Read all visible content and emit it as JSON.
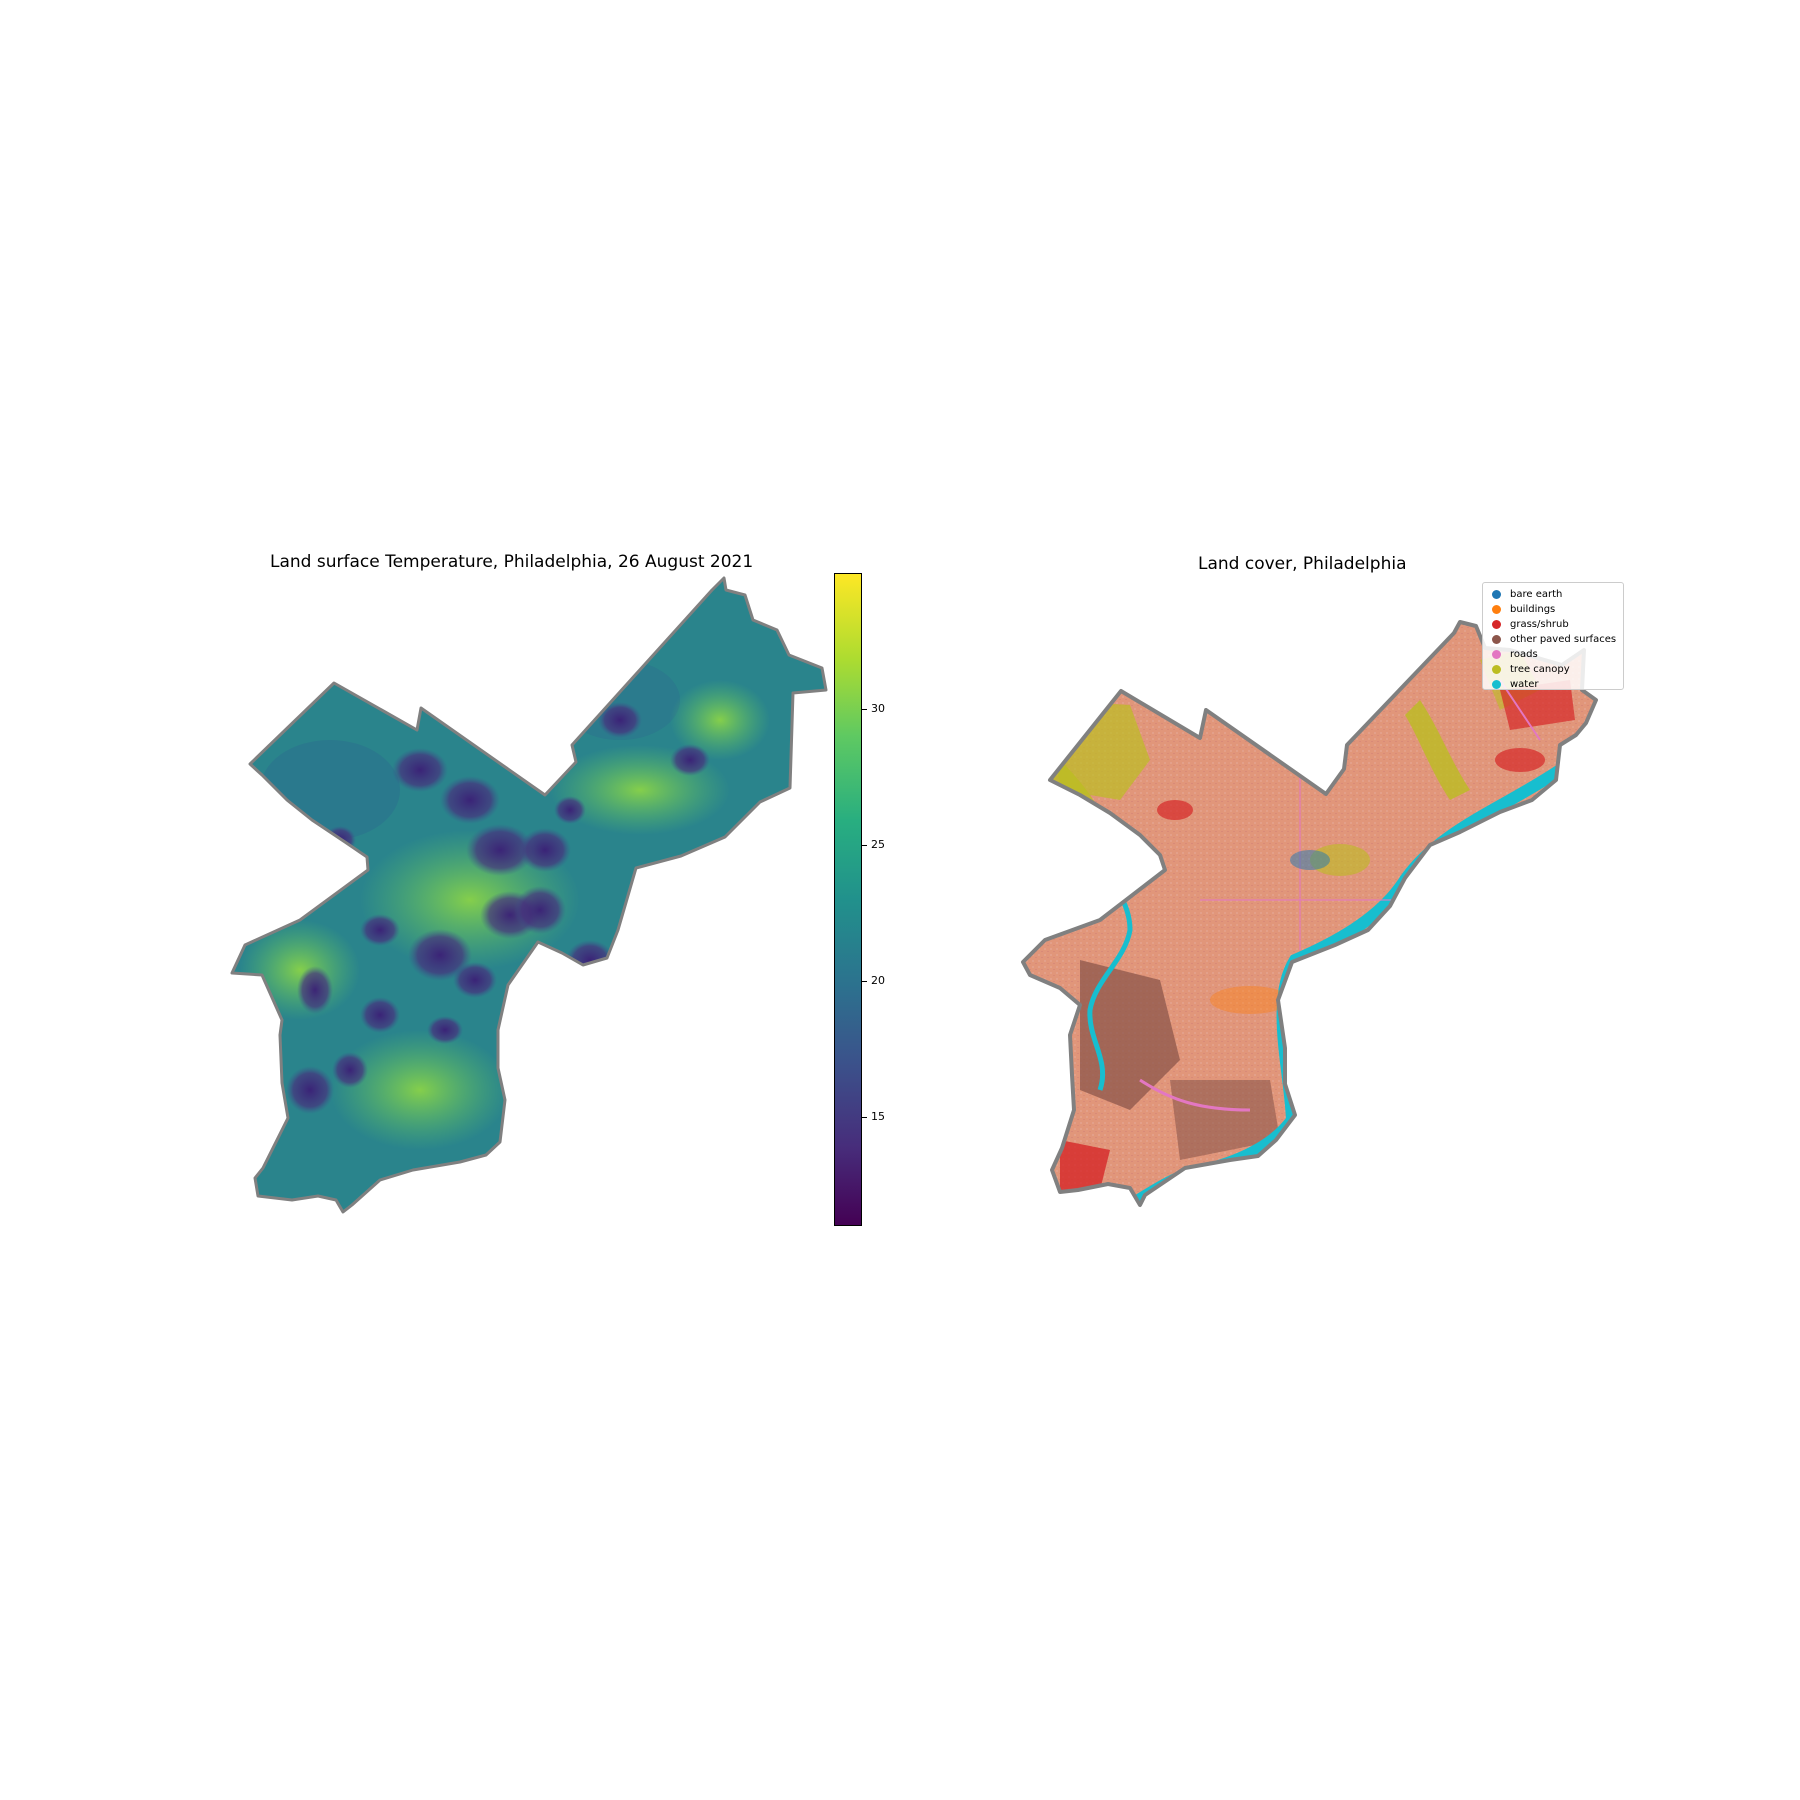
{
  "temperature_map": {
    "title": "Land surface Temperature, Philadelphia, 26 August 2021",
    "colormap": "viridis",
    "colorbar": {
      "range": [
        11,
        35
      ],
      "ticks": [
        {
          "value": 30,
          "label": "30"
        },
        {
          "value": 25,
          "label": "25"
        },
        {
          "value": 20,
          "label": "20"
        },
        {
          "value": 15,
          "label": "15"
        }
      ]
    },
    "boundary_color": "#808080"
  },
  "landcover_map": {
    "title": "Land cover, Philadelphia",
    "legend": [
      {
        "label": "bare earth",
        "color": "#1f77b4"
      },
      {
        "label": "buildings",
        "color": "#ff7f0e"
      },
      {
        "label": "grass/shrub",
        "color": "#d62728"
      },
      {
        "label": "other paved surfaces",
        "color": "#8c564b"
      },
      {
        "label": "roads",
        "color": "#e377c2"
      },
      {
        "label": "tree canopy",
        "color": "#bcbd22"
      },
      {
        "label": "water",
        "color": "#17becf"
      }
    ],
    "base_color": "#e1967a",
    "boundary_color": "#808080"
  }
}
